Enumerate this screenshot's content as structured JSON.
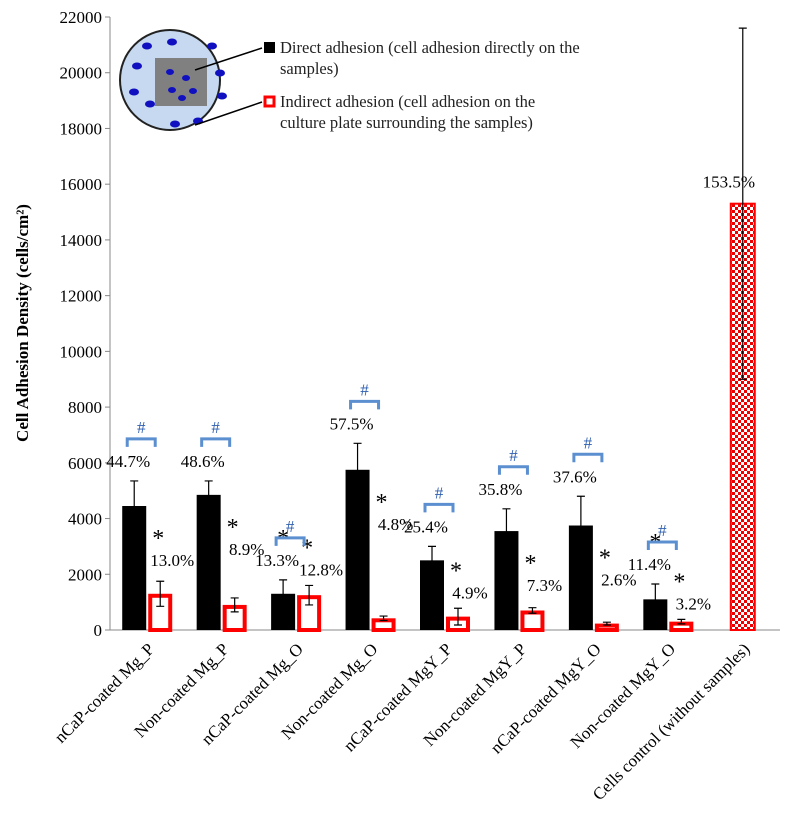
{
  "chart_data": {
    "type": "bar",
    "ylabel": "Cell Adhesion Density (cells/cm²)",
    "categories": [
      "nCaP-coated Mg_P",
      "Non-coated Mg_P",
      "nCaP-coated Mg_O",
      "Non-coated Mg_O",
      "nCaP-coated MgY_P",
      "Non-coated MgY_P",
      "nCaP-coated MgY_O",
      "Non-coated MgY_O",
      "Cells control (without samples)"
    ],
    "series": [
      {
        "name": "Direct adhesion (cell adhesion directly on the samples)",
        "color": "#000000",
        "values": [
          4450,
          4850,
          1300,
          5750,
          2500,
          3550,
          3750,
          1100,
          null
        ],
        "errors": [
          900,
          500,
          500,
          950,
          500,
          800,
          1050,
          550,
          null
        ],
        "percent_labels": [
          "44.7%",
          "48.6%",
          "13.3%",
          "57.5%",
          "25.4%",
          "35.8%",
          "37.6%",
          "11.4%",
          null
        ],
        "marks": [
          null,
          null,
          "*",
          null,
          null,
          null,
          null,
          "*",
          null
        ]
      },
      {
        "name": "Indirect adhesion (cell adhesion on the culture plate surrounding the samples)",
        "color": "#ff0000",
        "values": [
          1300,
          900,
          1250,
          420,
          480,
          700,
          230,
          300,
          15300
        ],
        "errors": [
          450,
          250,
          350,
          80,
          300,
          100,
          50,
          80,
          6300
        ],
        "percent_labels": [
          "13.0%",
          "8.9%",
          "12.8%",
          "4.8%",
          "4.9%",
          "7.3%",
          "2.6%",
          "3.2%",
          "153.5%"
        ],
        "marks": [
          "*",
          "*",
          "*",
          "*",
          "*",
          "*",
          "*",
          "*",
          null
        ]
      }
    ],
    "group_marks": [
      "#",
      "#",
      "#",
      "#",
      "#",
      "#",
      "#",
      "#",
      null
    ],
    "ylim": [
      0,
      22000
    ],
    "yticks": [
      0,
      2000,
      4000,
      6000,
      8000,
      10000,
      12000,
      14000,
      16000,
      18000,
      20000,
      22000
    ]
  }
}
